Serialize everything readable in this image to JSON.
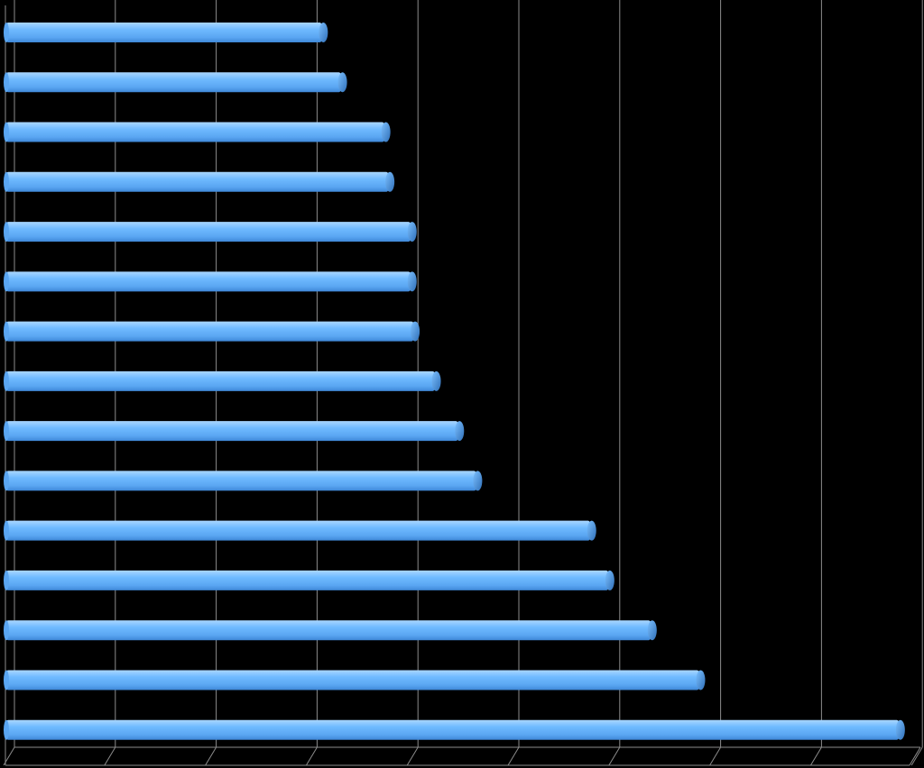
{
  "chart_data": {
    "type": "bar",
    "orientation": "horizontal",
    "style": "3d-cylinder",
    "title": "",
    "xlabel": "",
    "ylabel": "",
    "xlim": [
      0,
      9
    ],
    "grid": "vertical",
    "legend": "none",
    "colors": {
      "background": "#000000",
      "bar_fill": "#66b3ff",
      "bar_shade": "#3f88d8",
      "bar_highlight": "#a9d6ff",
      "gridline": "#8c8c8c"
    },
    "values": [
      3.08,
      3.27,
      3.7,
      3.74,
      3.96,
      3.96,
      3.99,
      4.2,
      4.43,
      4.61,
      5.74,
      5.92,
      6.34,
      6.82,
      8.8
    ]
  }
}
